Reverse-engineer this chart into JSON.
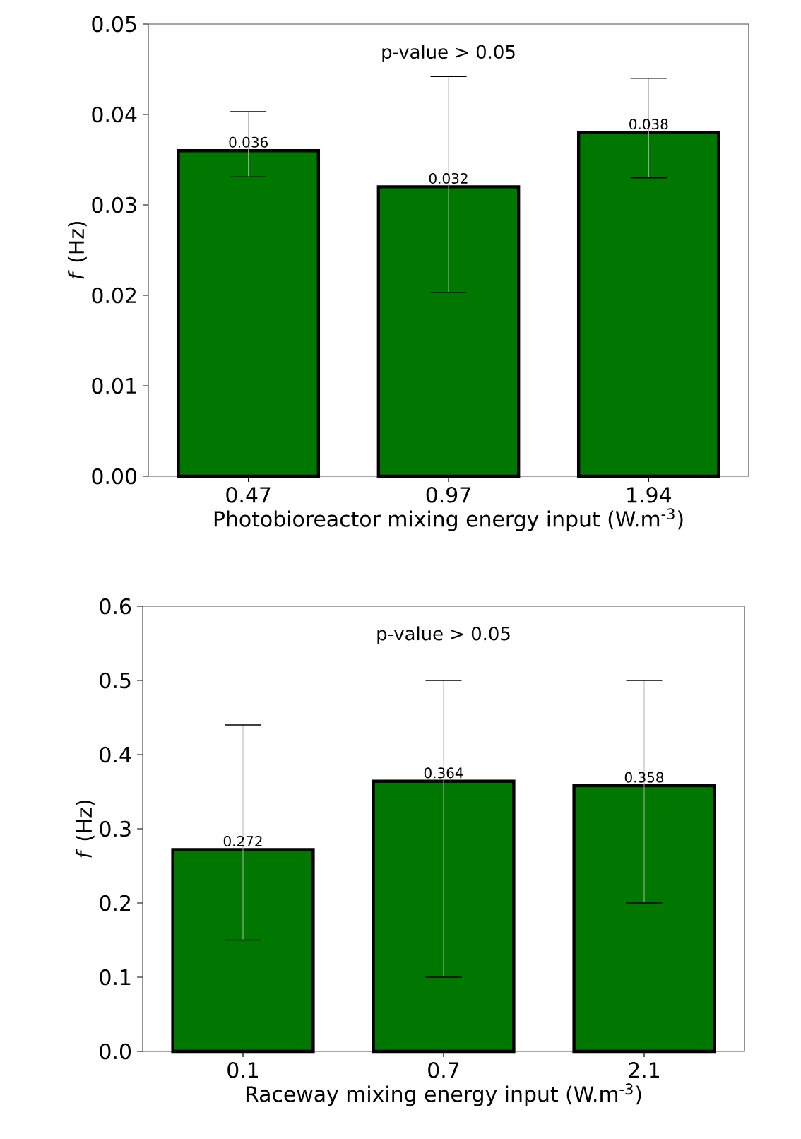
{
  "chart_data": [
    {
      "type": "bar",
      "xlabel": "Photobioreactor mixing energy input (W.m$^{-3}$)",
      "ylabel": "*f* (Hz)",
      "annotations": [
        "p-value > 0.05"
      ],
      "categories": [
        "0.47",
        "0.97",
        "1.94"
      ],
      "values": [
        0.036,
        0.032,
        0.038
      ],
      "color": "#007800",
      "errors": [
        [
          0.0331,
          0.0403
        ],
        [
          0.0203,
          0.0442
        ],
        [
          0.033,
          0.044
        ]
      ],
      "data_labels": true,
      "ylim": [
        0,
        0.05
      ],
      "yticks": [
        {
          "value": 0,
          "label": "0.00"
        },
        0.01,
        0.02,
        0.03,
        0.04,
        0.05
      ]
    },
    {
      "type": "bar",
      "xlabel": "Raceway mixing energy input (W.m$^{-3}$)",
      "ylabel": "*f* (Hz)",
      "annotations": [
        "p-value > 0.05"
      ],
      "categories": [
        "0.1",
        "0.7",
        "2.1"
      ],
      "values": [
        0.272,
        0.364,
        0.358
      ],
      "color": "#007800",
      "errors": [
        [
          0.15,
          0.44
        ],
        [
          0.1,
          0.5
        ],
        [
          0.2,
          0.5
        ]
      ],
      "data_labels": true,
      "ylim": [
        0,
        0.6
      ],
      "yticks": [
        {
          "value": 0,
          "label": "0.0"
        },
        0.1,
        0.2,
        0.3,
        0.4,
        0.5,
        0.6
      ]
    }
  ]
}
